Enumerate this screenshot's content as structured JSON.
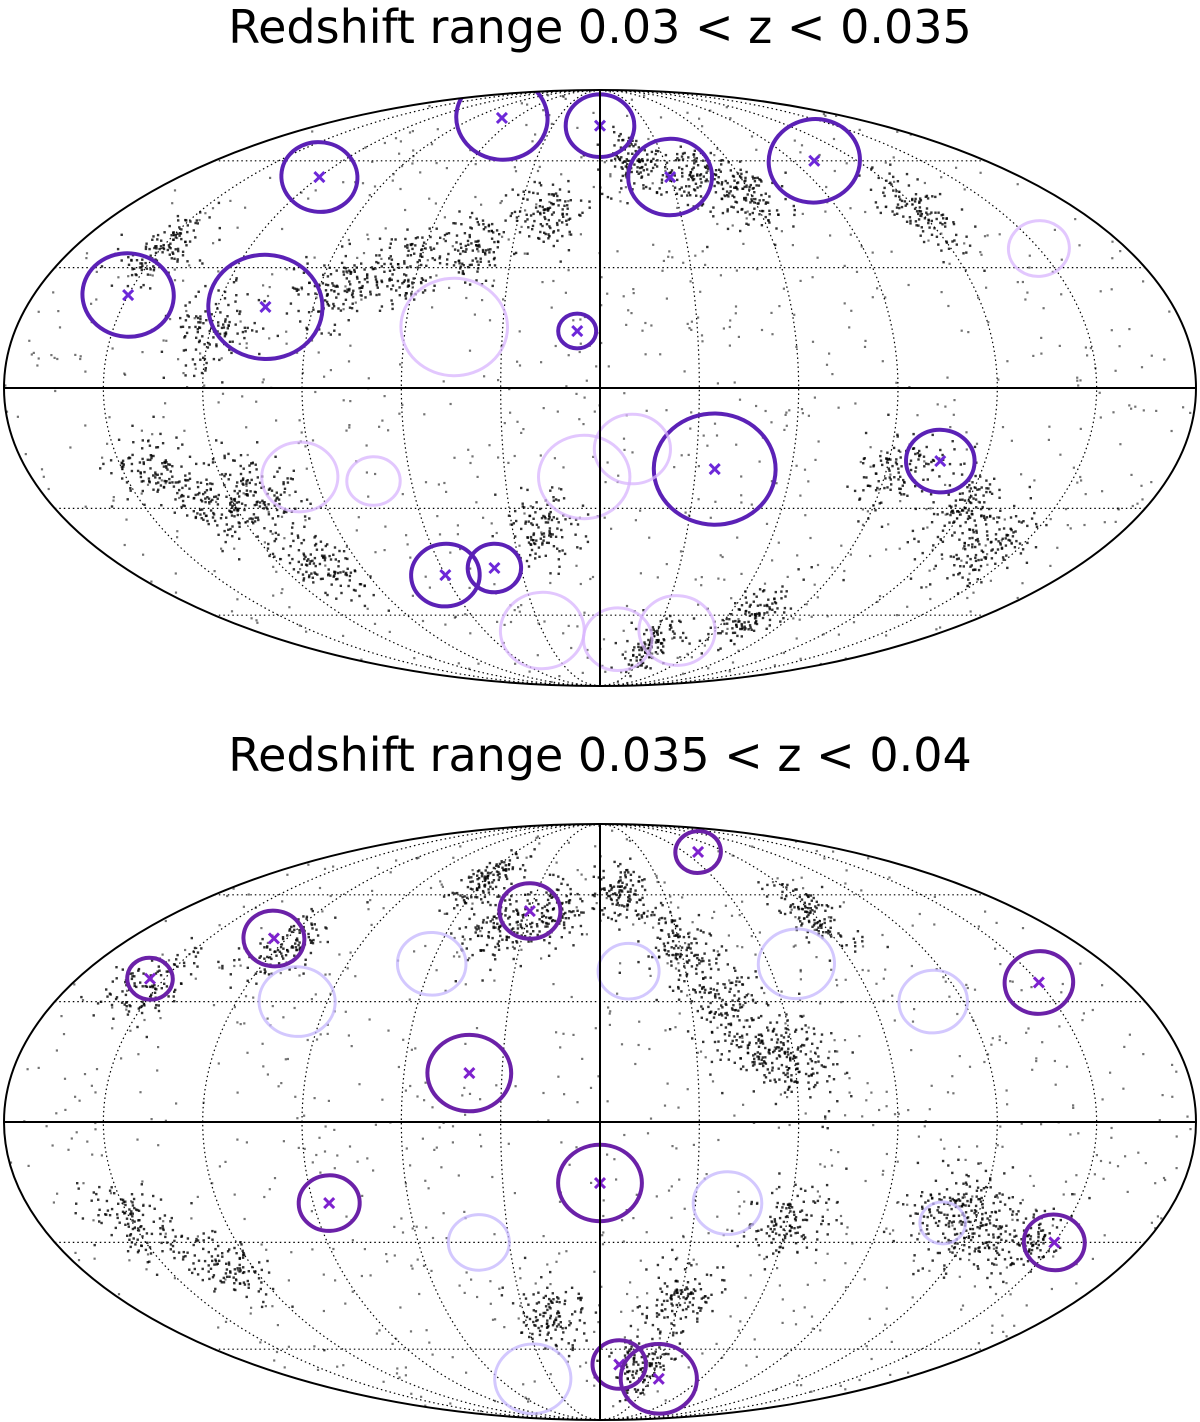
{
  "chart_data": [
    {
      "type": "scatter",
      "projection": "mollweide",
      "title": "Redshift range 0.03 < z < 0.035",
      "graticule": {
        "meridians_deg": [
          -150,
          -120,
          -90,
          -60,
          -30,
          0,
          30,
          60,
          90,
          120,
          150
        ],
        "parallels_deg": [
          -60,
          -30,
          0,
          30,
          60
        ],
        "grid": true
      },
      "colors": {
        "galaxies": "#000000",
        "strong": "#5b21b6",
        "medium": "#7c3aed",
        "faint": "#d8b4fe",
        "marker": "#6d28d9"
      },
      "galaxy_filaments": [
        {
          "lon": 60,
          "lat": 50
        },
        {
          "lon": 40,
          "lat": 55
        },
        {
          "lon": 15,
          "lat": 60
        },
        {
          "lon": -20,
          "lat": 45
        },
        {
          "lon": -45,
          "lat": 35
        },
        {
          "lon": -65,
          "lat": 30
        },
        {
          "lon": -85,
          "lat": 25
        },
        {
          "lon": -120,
          "lat": 15
        },
        {
          "lon": -140,
          "lat": -20
        },
        {
          "lon": -125,
          "lat": -30
        },
        {
          "lon": -110,
          "lat": -25
        },
        {
          "lon": -105,
          "lat": -45
        },
        {
          "lon": 95,
          "lat": -20
        },
        {
          "lon": 120,
          "lat": -30
        },
        {
          "lon": 140,
          "lat": -40
        },
        {
          "lon": 70,
          "lat": -60
        },
        {
          "lon": 30,
          "lat": -70
        },
        {
          "lon": -20,
          "lat": -35
        },
        {
          "lon": -150,
          "lat": 35
        },
        {
          "lon": 120,
          "lat": 45
        }
      ],
      "voids": [
        {
          "lon": -120,
          "lat": 55,
          "r": 10,
          "style": "strong",
          "center_marked": true
        },
        {
          "lon": -150,
          "lat": 23,
          "r": 12,
          "style": "strong",
          "center_marked": true
        },
        {
          "lon": -105,
          "lat": 20,
          "r": 15,
          "style": "strong",
          "center_marked": true
        },
        {
          "lon": -45,
          "lat": 15,
          "r": 14,
          "style": "faint",
          "center_marked": false
        },
        {
          "lon": -7,
          "lat": 14,
          "r": 5,
          "style": "strong",
          "center_marked": true
        },
        {
          "lon": -70,
          "lat": 75,
          "r": 12,
          "style": "strong",
          "center_marked": true
        },
        {
          "lon": 0,
          "lat": 72,
          "r": 9,
          "style": "strong",
          "center_marked": true
        },
        {
          "lon": 30,
          "lat": 55,
          "r": 11,
          "style": "strong",
          "center_marked": true
        },
        {
          "lon": 100,
          "lat": 60,
          "r": 12,
          "style": "strong",
          "center_marked": true
        },
        {
          "lon": 150,
          "lat": 35,
          "r": 8,
          "style": "faint",
          "center_marked": false
        },
        {
          "lon": 36,
          "lat": -20,
          "r": 16,
          "style": "strong",
          "center_marked": true
        },
        {
          "lon": 106,
          "lat": -18,
          "r": 9,
          "style": "strong",
          "center_marked": true
        },
        {
          "lon": -5,
          "lat": -22,
          "r": 12,
          "style": "faint",
          "center_marked": false
        },
        {
          "lon": 10,
          "lat": -15,
          "r": 10,
          "style": "faint",
          "center_marked": false
        },
        {
          "lon": -95,
          "lat": -22,
          "r": 10,
          "style": "faint",
          "center_marked": false
        },
        {
          "lon": -72,
          "lat": -23,
          "r": 7,
          "style": "faint",
          "center_marked": false
        },
        {
          "lon": -60,
          "lat": -48,
          "r": 9,
          "style": "strong",
          "center_marked": true
        },
        {
          "lon": -40,
          "lat": -46,
          "r": 7,
          "style": "strong",
          "center_marked": true
        },
        {
          "lon": -30,
          "lat": -65,
          "r": 11,
          "style": "faint",
          "center_marked": false
        },
        {
          "lon": 10,
          "lat": -68,
          "r": 9,
          "style": "faint",
          "center_marked": false
        },
        {
          "lon": 40,
          "lat": -65,
          "r": 10,
          "style": "faint",
          "center_marked": false
        }
      ]
    },
    {
      "type": "scatter",
      "projection": "mollweide",
      "title": "Redshift range 0.035 < z < 0.04",
      "graticule": {
        "meridians_deg": [
          -150,
          -120,
          -90,
          -60,
          -30,
          0,
          30,
          60,
          90,
          120,
          150
        ],
        "parallels_deg": [
          -60,
          -30,
          0,
          30,
          60
        ],
        "grid": true
      },
      "colors": {
        "galaxies": "#000000",
        "strong": "#6b21a8",
        "medium": "#9333ea",
        "faint": "#c4b5fd",
        "marker": "#7e22ce"
      },
      "galaxy_filaments": [
        {
          "lon": -40,
          "lat": 50
        },
        {
          "lon": -20,
          "lat": 55
        },
        {
          "lon": 10,
          "lat": 60
        },
        {
          "lon": 30,
          "lat": 45
        },
        {
          "lon": 40,
          "lat": 30
        },
        {
          "lon": 50,
          "lat": 20
        },
        {
          "lon": 60,
          "lat": 15
        },
        {
          "lon": -120,
          "lat": 45
        },
        {
          "lon": -155,
          "lat": 35
        },
        {
          "lon": 110,
          "lat": -20
        },
        {
          "lon": 120,
          "lat": -25
        },
        {
          "lon": 140,
          "lat": -30
        },
        {
          "lon": 60,
          "lat": -25
        },
        {
          "lon": 30,
          "lat": -45
        },
        {
          "lon": 20,
          "lat": -65
        },
        {
          "lon": -20,
          "lat": -50
        },
        {
          "lon": -150,
          "lat": -25
        },
        {
          "lon": -130,
          "lat": -35
        },
        {
          "lon": 90,
          "lat": 55
        },
        {
          "lon": -60,
          "lat": 65
        }
      ],
      "voids": [
        {
          "lon": -155,
          "lat": 36,
          "r": 6,
          "style": "strong",
          "center_marked": true
        },
        {
          "lon": -125,
          "lat": 47,
          "r": 8,
          "style": "strong",
          "center_marked": true
        },
        {
          "lon": -40,
          "lat": 12,
          "r": 11,
          "style": "strong",
          "center_marked": true
        },
        {
          "lon": -30,
          "lat": 55,
          "r": 8,
          "style": "strong",
          "center_marked": true
        },
        {
          "lon": 70,
          "lat": 75,
          "r": 6,
          "style": "strong",
          "center_marked": true
        },
        {
          "lon": 150,
          "lat": 35,
          "r": 9,
          "style": "strong",
          "center_marked": true
        },
        {
          "lon": -100,
          "lat": 30,
          "r": 10,
          "style": "faint",
          "center_marked": false
        },
        {
          "lon": -60,
          "lat": 40,
          "r": 9,
          "style": "faint",
          "center_marked": false
        },
        {
          "lon": 10,
          "lat": 38,
          "r": 8,
          "style": "faint",
          "center_marked": false
        },
        {
          "lon": 70,
          "lat": 40,
          "r": 10,
          "style": "faint",
          "center_marked": false
        },
        {
          "lon": 110,
          "lat": 30,
          "r": 9,
          "style": "faint",
          "center_marked": false
        },
        {
          "lon": 0,
          "lat": -15,
          "r": 11,
          "style": "strong",
          "center_marked": true
        },
        {
          "lon": -85,
          "lat": -20,
          "r": 8,
          "style": "strong",
          "center_marked": true
        },
        {
          "lon": 150,
          "lat": -30,
          "r": 8,
          "style": "strong",
          "center_marked": true
        },
        {
          "lon": 40,
          "lat": -20,
          "r": 9,
          "style": "faint",
          "center_marked": false
        },
        {
          "lon": -40,
          "lat": -30,
          "r": 8,
          "style": "faint",
          "center_marked": false
        },
        {
          "lon": 10,
          "lat": -65,
          "r": 7,
          "style": "strong",
          "center_marked": true
        },
        {
          "lon": 35,
          "lat": -70,
          "r": 10,
          "style": "strong",
          "center_marked": true
        },
        {
          "lon": -40,
          "lat": -70,
          "r": 10,
          "style": "faint",
          "center_marked": false
        },
        {
          "lon": 110,
          "lat": -25,
          "r": 6,
          "style": "faint",
          "center_marked": false
        }
      ]
    }
  ]
}
